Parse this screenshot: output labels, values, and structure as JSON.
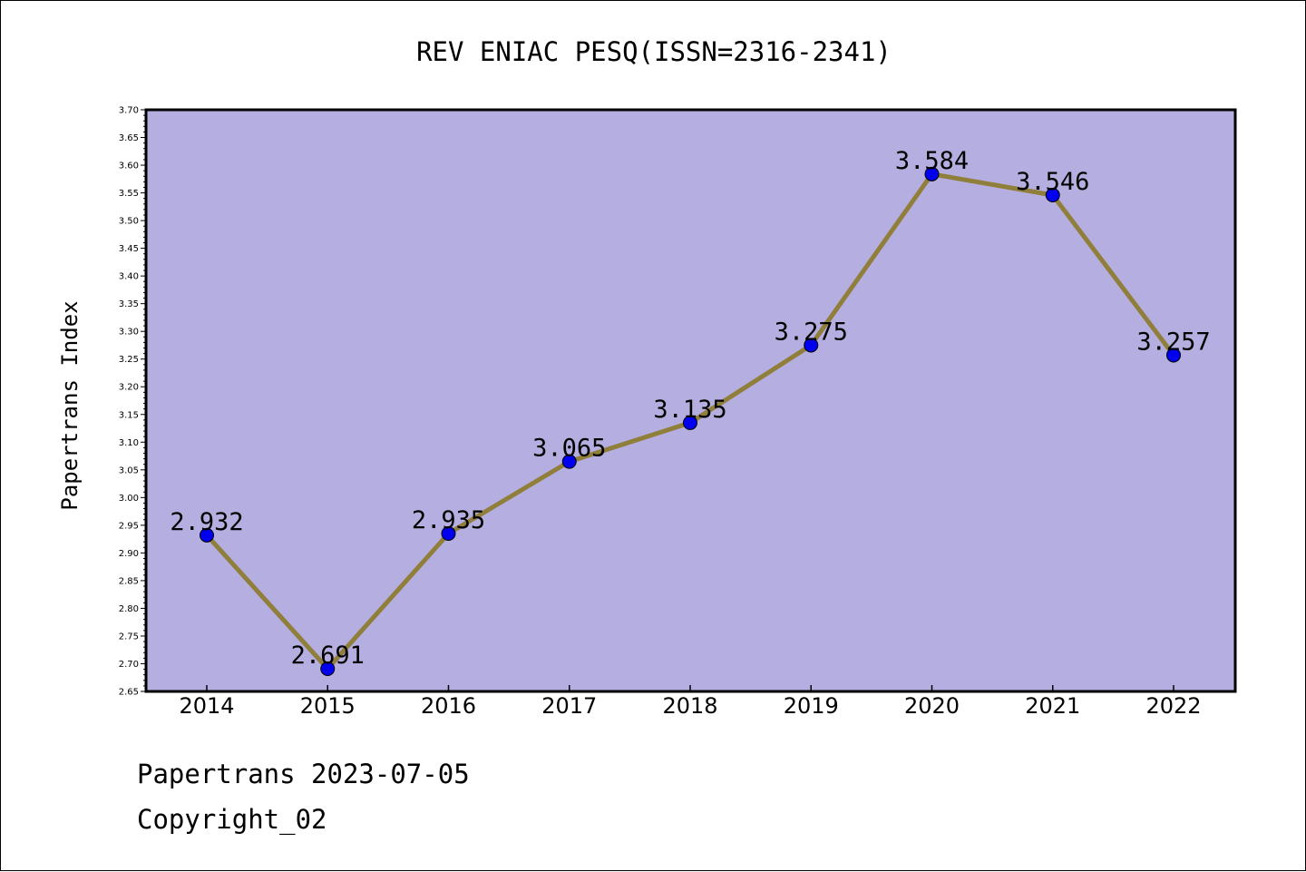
{
  "chart_data": {
    "type": "line",
    "title": "REV ENIAC PESQ(ISSN=2316-2341)",
    "xlabel": "",
    "ylabel": "Papertrans Index",
    "categories": [
      "2014",
      "2015",
      "2016",
      "2017",
      "2018",
      "2019",
      "2020",
      "2021",
      "2022"
    ],
    "values": [
      2.932,
      2.691,
      2.935,
      3.065,
      3.135,
      3.275,
      3.584,
      3.546,
      3.257
    ],
    "value_labels": [
      "2.932",
      "2.691",
      "2.935",
      "3.065",
      "3.135",
      "3.275",
      "3.584",
      "3.546",
      "3.257"
    ],
    "ylim": [
      2.65,
      3.7
    ],
    "ytick_step": 0.05,
    "grid": false,
    "colors": {
      "plot_background": "#b5aee1",
      "line": "#8f7f3a",
      "marker": "#0000ee"
    }
  },
  "footer": {
    "line1": "Papertrans 2023-07-05",
    "line2": "Copyright_02"
  }
}
